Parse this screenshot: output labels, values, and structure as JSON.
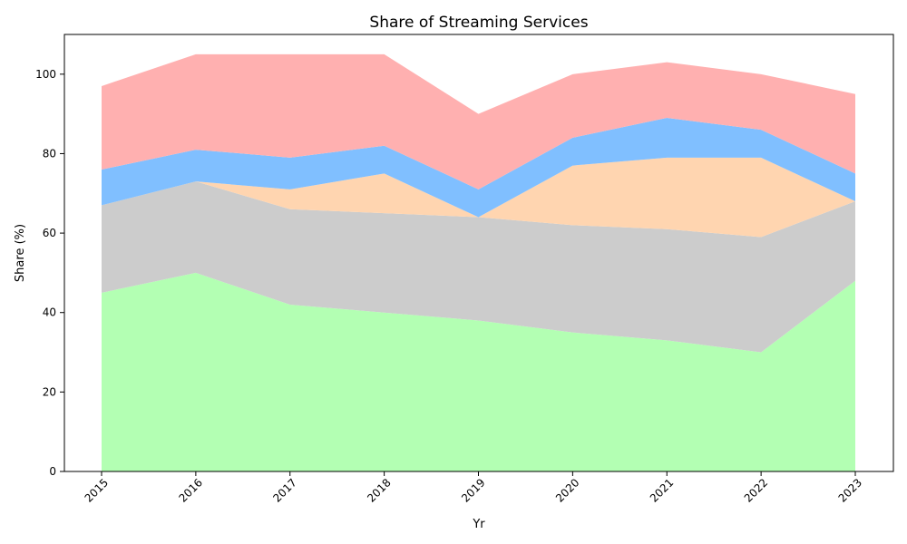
{
  "chart_data": {
    "type": "area",
    "stacked": true,
    "title": "Share of Streaming Services",
    "xlabel": "Yr",
    "ylabel": "Share (%)",
    "x": [
      "2015",
      "2016",
      "2017",
      "2018",
      "2019",
      "2020",
      "2021",
      "2022",
      "2023"
    ],
    "ylim": [
      0,
      110
    ],
    "yticks": [
      0,
      20,
      40,
      60,
      80,
      100
    ],
    "grid": false,
    "legend": "none",
    "series": [
      {
        "color": "#b3ffb3",
        "values": [
          45,
          50,
          42,
          40,
          38,
          35,
          33,
          30,
          48
        ]
      },
      {
        "color": "#cccccc",
        "values": [
          22,
          23,
          24,
          25,
          26,
          27,
          28,
          29,
          20
        ]
      },
      {
        "color": "#ffd5b0",
        "values": [
          0,
          0,
          5,
          10,
          0,
          15,
          18,
          20,
          0
        ]
      },
      {
        "color": "#80bfff",
        "values": [
          9,
          8,
          8,
          7,
          7,
          7,
          10,
          7,
          7
        ]
      },
      {
        "color": "#ffb0b0",
        "values": [
          21,
          24,
          26,
          23,
          19,
          16,
          14,
          14,
          20
        ]
      }
    ]
  }
}
